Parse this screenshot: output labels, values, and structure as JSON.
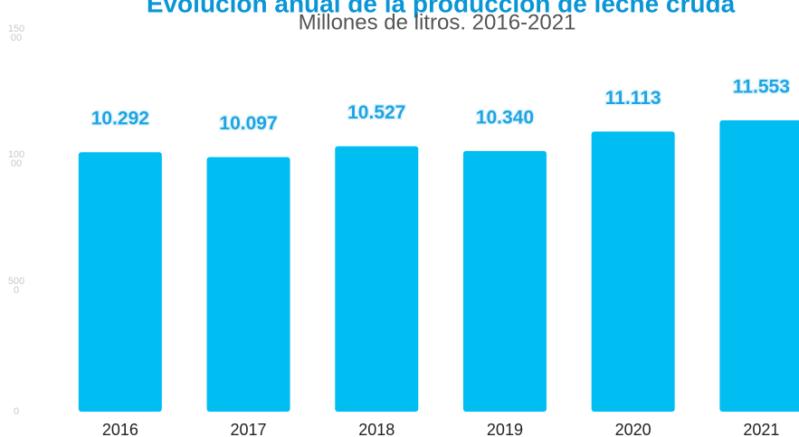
{
  "chart_data": {
    "type": "bar",
    "title": "Evolución anual de la producción de leche cruda",
    "subtitle": "Millones de litros. 2016-2021",
    "categories": [
      "2016",
      "2017",
      "2018",
      "2019",
      "2020",
      "2021"
    ],
    "values": [
      10292,
      10097,
      10527,
      10340,
      11113,
      11553
    ],
    "value_labels": [
      "10.292",
      "10.097",
      "10.527",
      "10.340",
      "11.113",
      "11.553"
    ],
    "color": "#00bdf2",
    "ylim": [
      0,
      15000
    ],
    "yticks": [
      0,
      5000,
      10000,
      15000
    ],
    "grid": false
  }
}
